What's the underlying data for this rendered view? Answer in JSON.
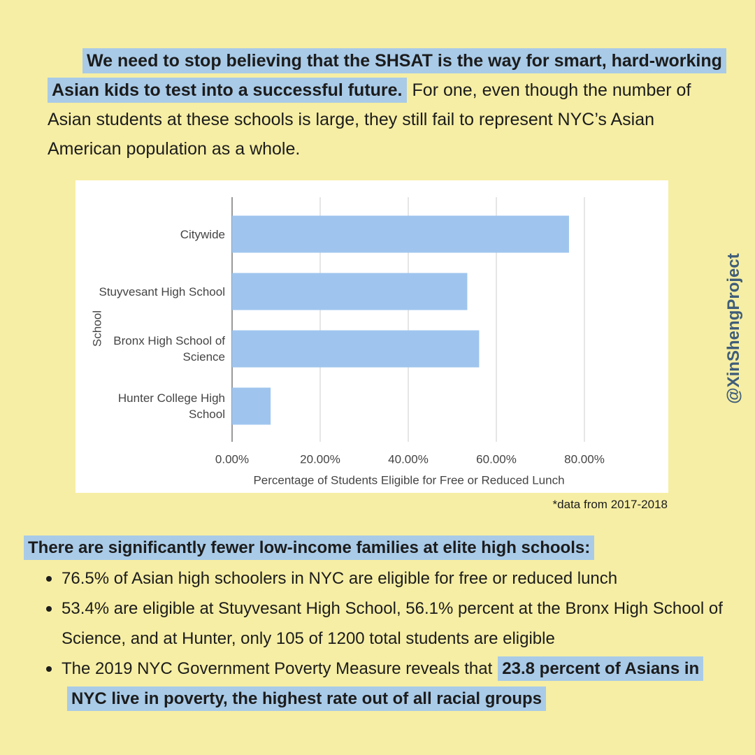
{
  "intro": {
    "highlight": "We need to stop believing that the SHSAT is the way for smart, hard-working Asian kids to test into a successful future.",
    "text": "For one, even though the number of Asian students at these schools is large, they still fail to represent NYC’s Asian American population as a whole."
  },
  "chart_data": {
    "type": "hbar",
    "ylabel": "School",
    "xlabel": "Percentage of Students Eligible for Free or Reduced Lunch",
    "categories": [
      "Citywide",
      "Stuyvesant High School",
      "Bronx High School of Science",
      "Hunter College High School"
    ],
    "values": [
      76.5,
      53.4,
      56.1,
      8.75
    ],
    "color": "#9fc5ee",
    "xlim": [
      0,
      80
    ],
    "xticks": [
      {
        "value": 0,
        "label": "0.00%"
      },
      {
        "value": 20,
        "label": "20.00%"
      },
      {
        "value": 40,
        "label": "40.00%"
      },
      {
        "value": 60,
        "label": "60.00%"
      },
      {
        "value": 80,
        "label": "80.00%"
      }
    ],
    "grid": true
  },
  "note": "*data from 2017-2018",
  "heading": "There are significantly fewer low-income families at elite high schools:",
  "bullets": [
    {
      "text": "76.5% of Asian high schoolers in NYC are eligible for free or reduced lunch"
    },
    {
      "text": "53.4% are eligible at Stuyvesant High School, 56.1% percent at the Bronx High School of Science, and at Hunter, only 105 of 1200 total students are eligible"
    },
    {
      "text": "The 2019 NYC Government Poverty Measure reveals that",
      "highlight": "23.8 percent of Asians in NYC live in poverty, the highest rate out of all racial groups"
    }
  ],
  "handle": "@XinShengProject"
}
